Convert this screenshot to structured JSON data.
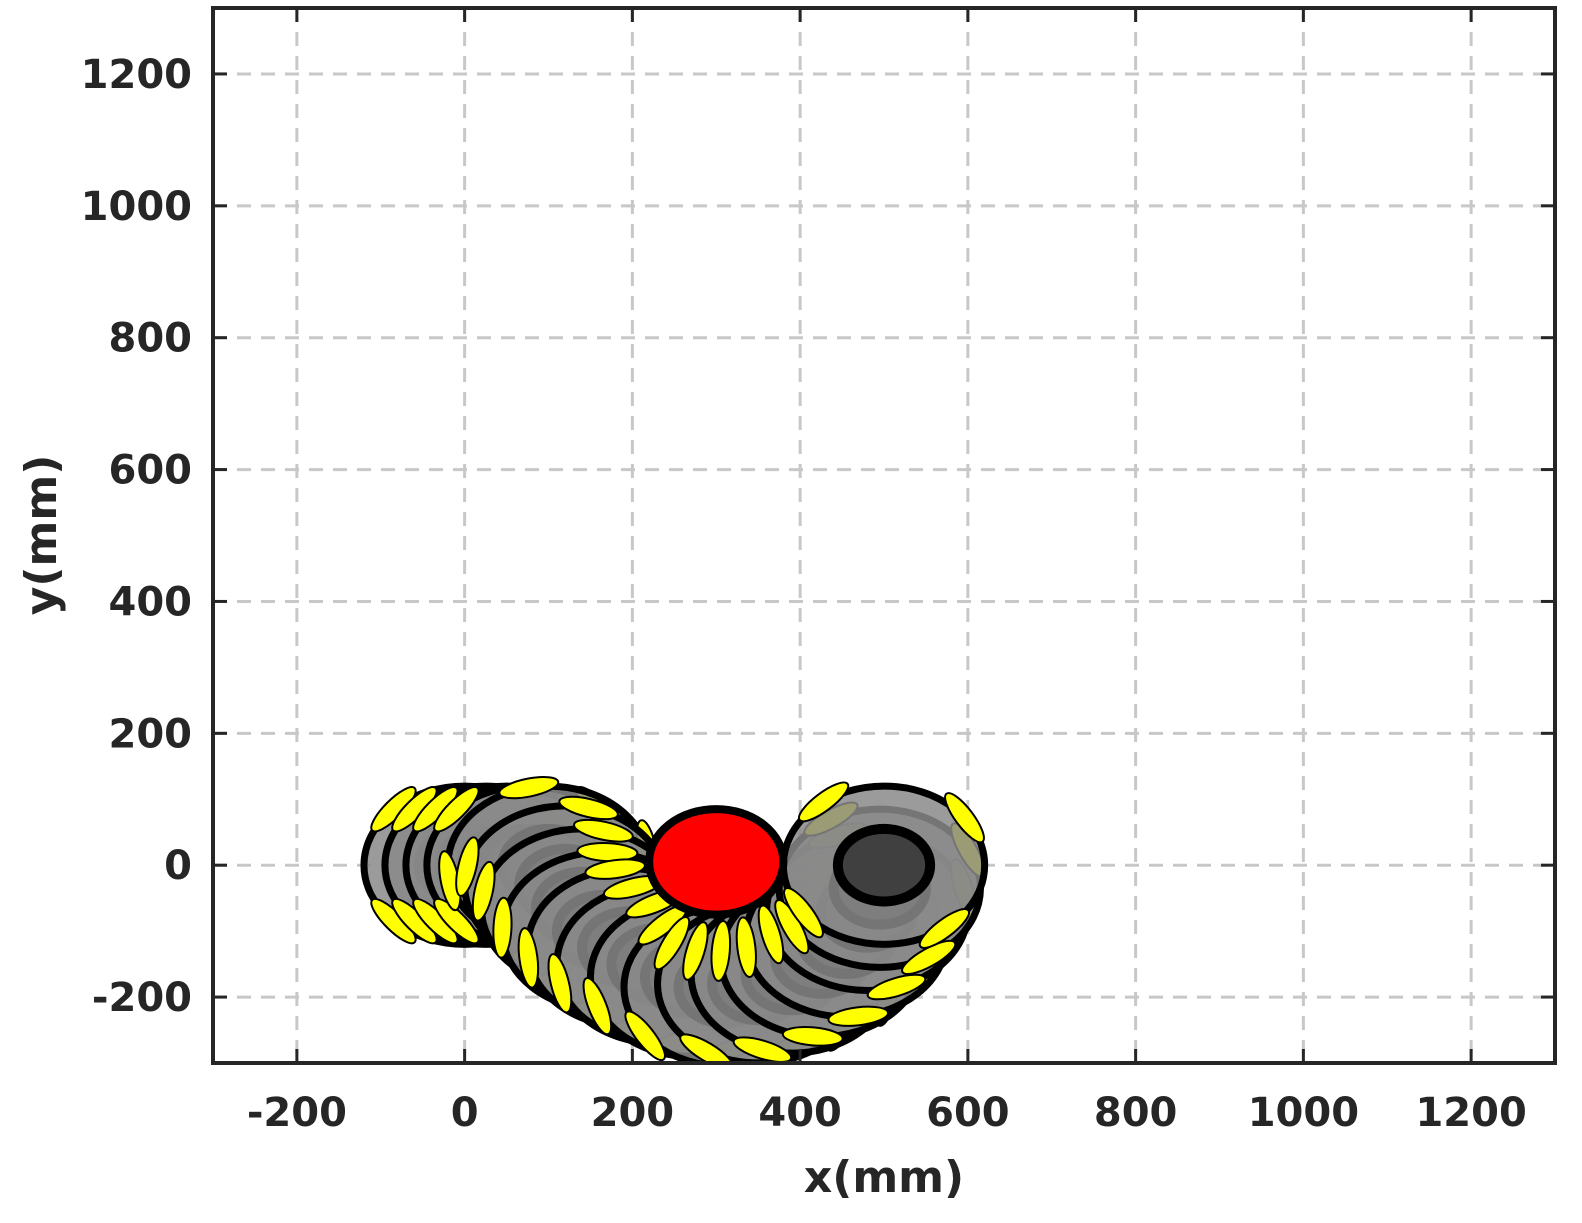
{
  "chart_data": {
    "type": "scatter",
    "xlabel": "x(mm)",
    "ylabel": "y(mm)",
    "xlim": [
      -300,
      1300
    ],
    "ylim": [
      -300,
      1300
    ],
    "xticks": [
      -200,
      0,
      200,
      400,
      600,
      800,
      1000,
      1200
    ],
    "yticks": [
      -200,
      0,
      200,
      400,
      600,
      800,
      1000,
      1200
    ],
    "grid": true,
    "robot_outer_radius_mm": 120,
    "robot_inner_radius_mm": 40,
    "robot_path": [
      {
        "x": 0,
        "y": 0
      },
      {
        "x": 25,
        "y": 0
      },
      {
        "x": 50,
        "y": 0
      },
      {
        "x": 75,
        "y": 0
      },
      {
        "x": 100,
        "y": 0
      },
      {
        "x": 120,
        "y": -30
      },
      {
        "x": 140,
        "y": -65
      },
      {
        "x": 165,
        "y": -100
      },
      {
        "x": 195,
        "y": -125
      },
      {
        "x": 230,
        "y": -150
      },
      {
        "x": 270,
        "y": -170
      },
      {
        "x": 310,
        "y": -185
      },
      {
        "x": 350,
        "y": -180
      },
      {
        "x": 390,
        "y": -165
      },
      {
        "x": 425,
        "y": -140
      },
      {
        "x": 455,
        "y": -110
      },
      {
        "x": 480,
        "y": -70
      },
      {
        "x": 495,
        "y": -35
      },
      {
        "x": 500,
        "y": 0
      }
    ],
    "obstacle": {
      "x": 300,
      "y": 5,
      "radius_mm": 80,
      "color": "#ff0000"
    },
    "colors": {
      "robot_fill": "#8a8a8a",
      "robot_edge": "#000000",
      "robot_inner": "#404040",
      "wheel": "#ffff00",
      "grid": "#c8c8c8"
    }
  }
}
